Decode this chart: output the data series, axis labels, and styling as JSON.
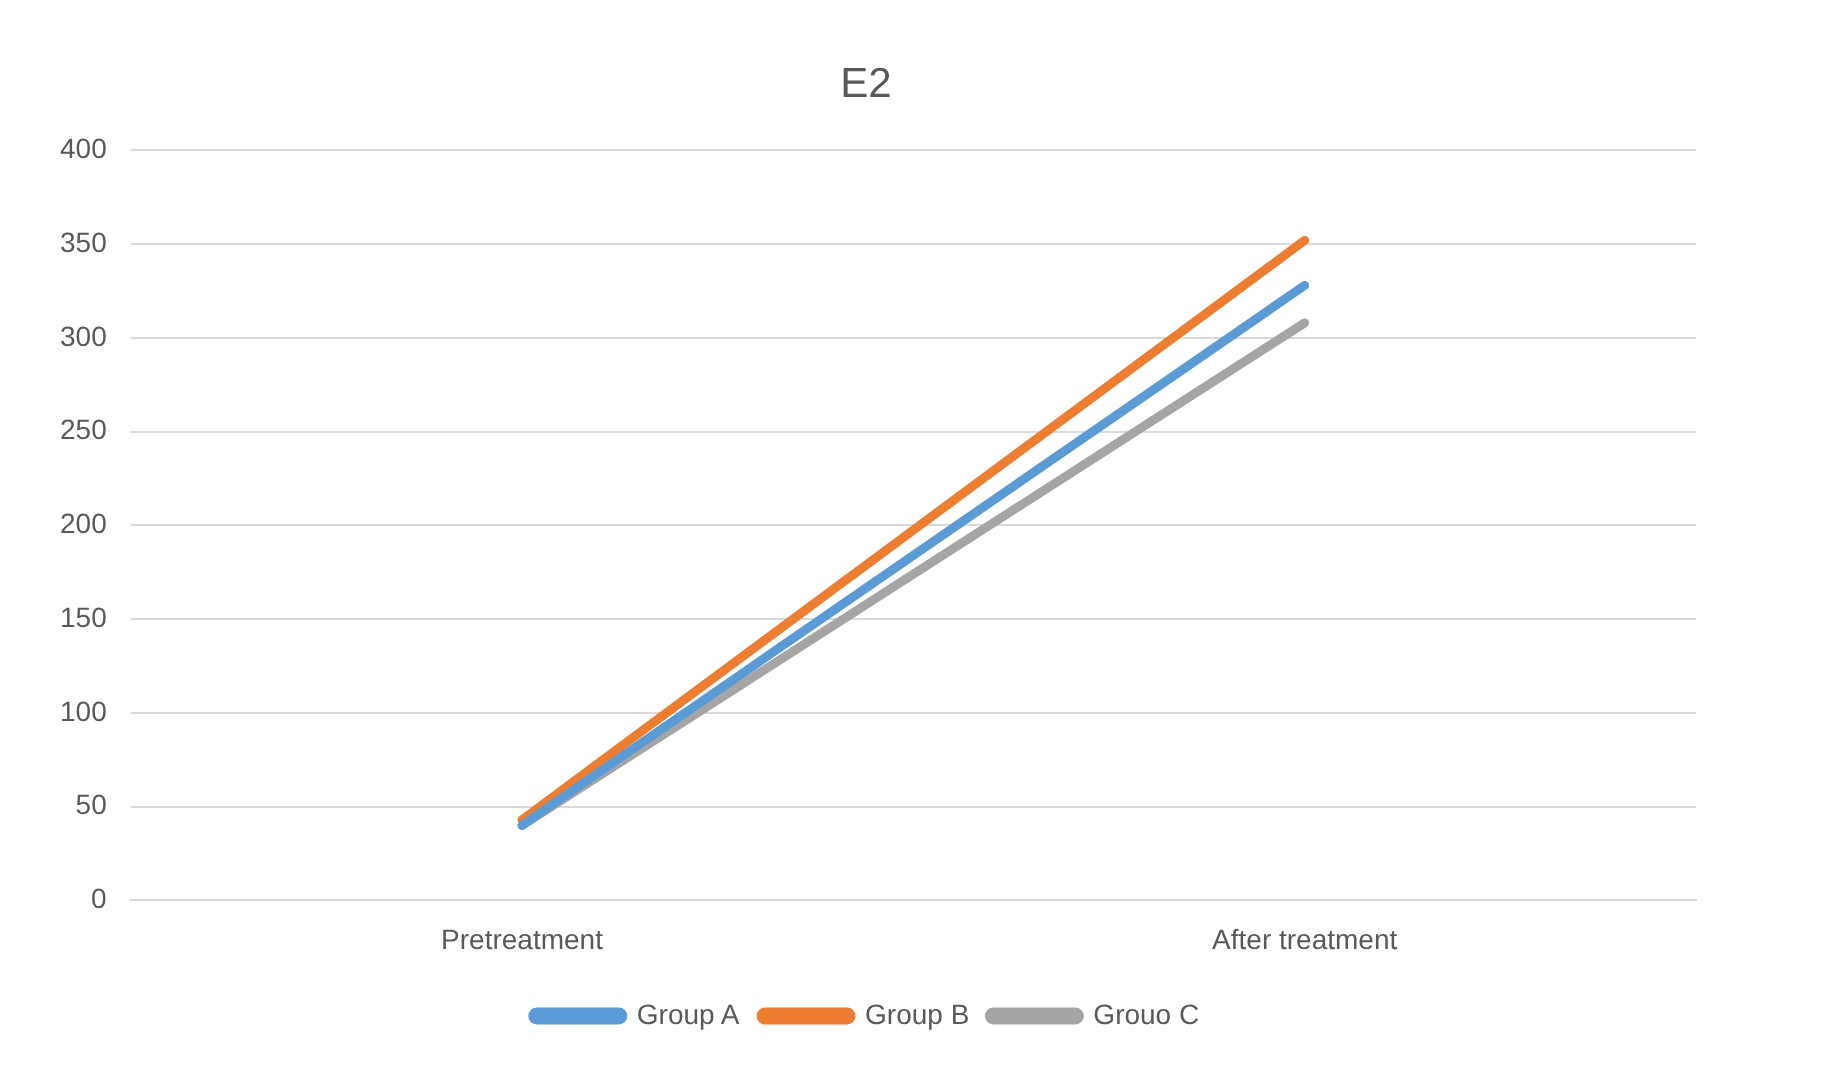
{
  "chart_data": {
    "type": "line",
    "title": "E2",
    "categories": [
      "Pretreatment",
      "After treatment"
    ],
    "series": [
      {
        "name": "Group A",
        "color": "#5b9bd5",
        "values": [
          40,
          328
        ]
      },
      {
        "name": "Group B",
        "color": "#ed7d31",
        "values": [
          43,
          352
        ]
      },
      {
        "name": "Grouo C",
        "color": "#a5a5a5",
        "values": [
          40,
          308
        ]
      }
    ],
    "ylim": [
      0,
      400
    ],
    "yticks": [
      0,
      50,
      100,
      150,
      200,
      250,
      300,
      350,
      400
    ],
    "grid": "y",
    "legend": "bottom",
    "marker": "none",
    "line_style": "solid"
  }
}
